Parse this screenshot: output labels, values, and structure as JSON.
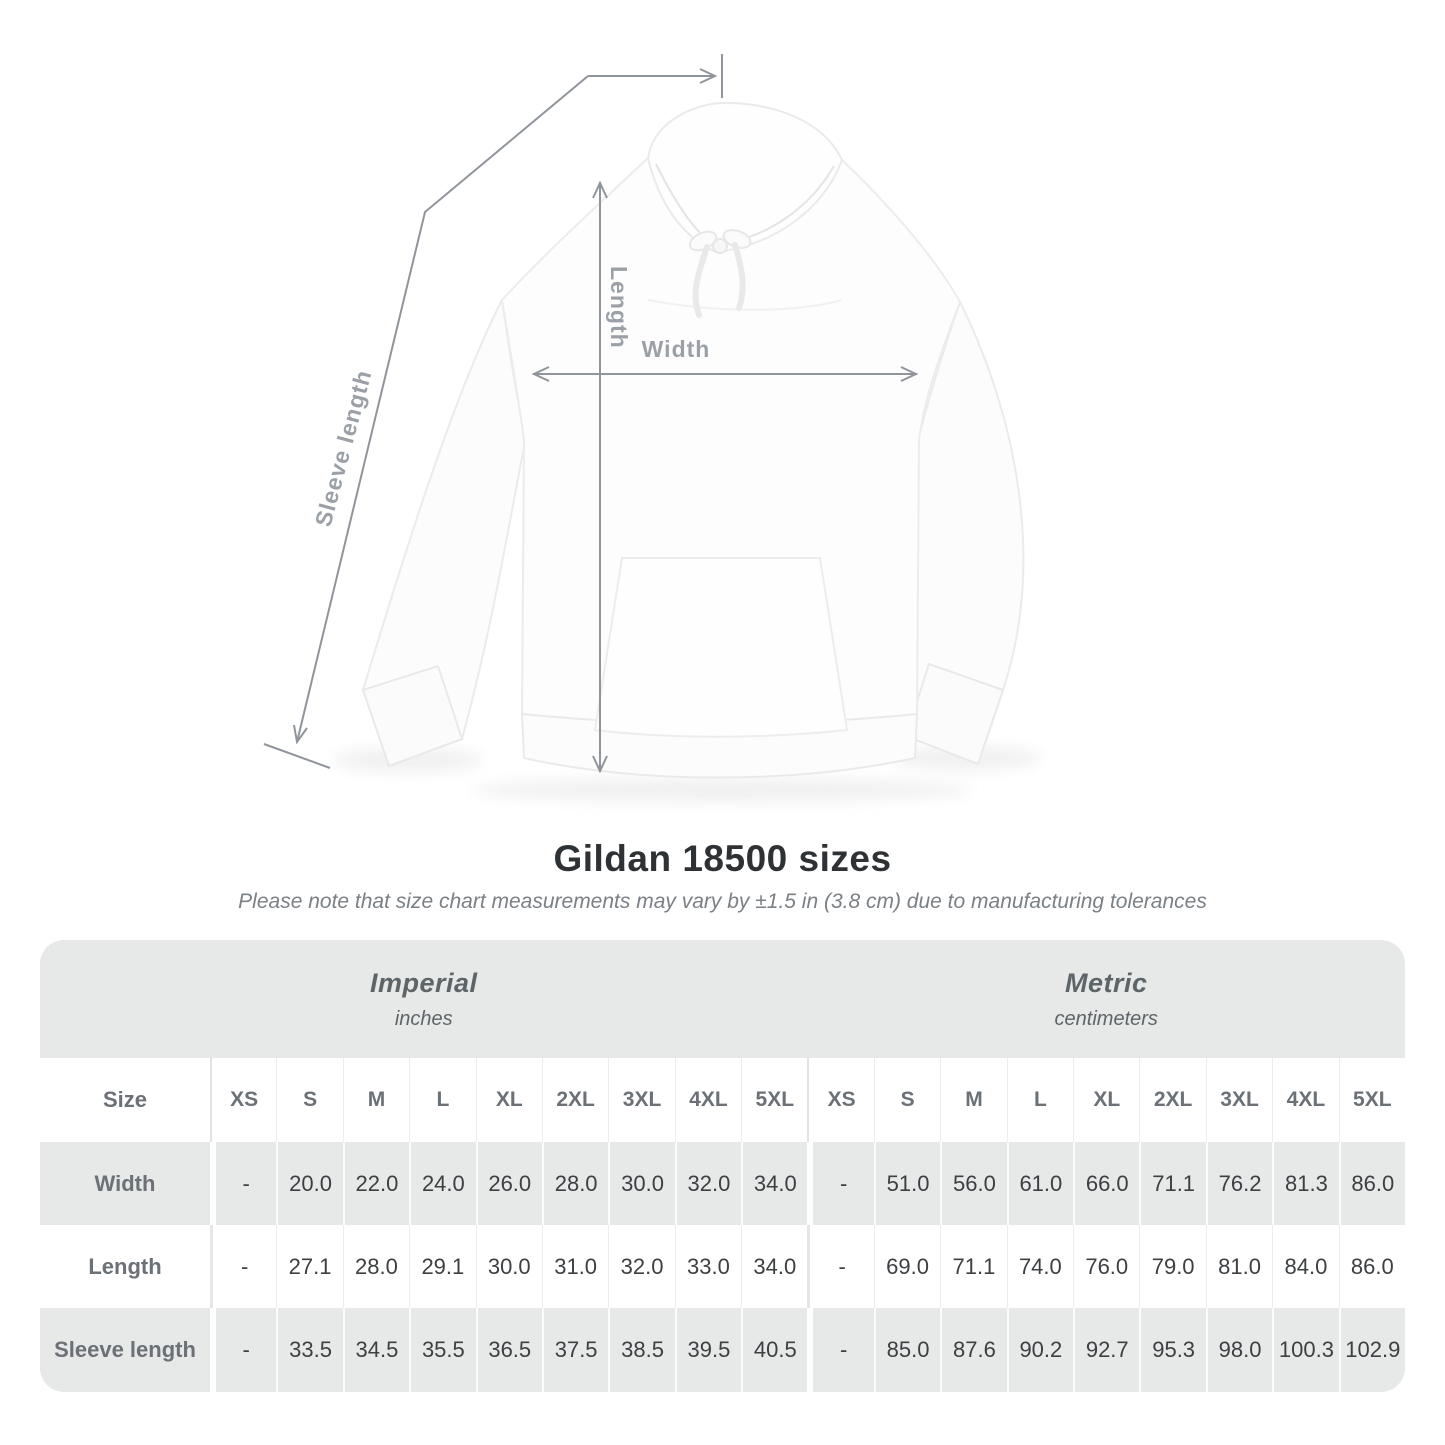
{
  "diagram": {
    "sleeve_label": "Sleeve length",
    "length_label": "Length",
    "width_label": "Width"
  },
  "heading": {
    "title": "Gildan 18500 sizes",
    "subtitle": "Please note that size chart measurements may vary by ±1.5 in (3.8 cm) due to manufacturing tolerances"
  },
  "table": {
    "sections": [
      {
        "name": "Imperial",
        "unit": "inches"
      },
      {
        "name": "Metric",
        "unit": "centimeters"
      }
    ],
    "size_header": "Size",
    "sizes": [
      "XS",
      "S",
      "M",
      "L",
      "XL",
      "2XL",
      "3XL",
      "4XL",
      "5XL"
    ],
    "rows": [
      {
        "label": "Width",
        "imperial": [
          "-",
          "20.0",
          "22.0",
          "24.0",
          "26.0",
          "28.0",
          "30.0",
          "32.0",
          "34.0"
        ],
        "metric": [
          "-",
          "51.0",
          "56.0",
          "61.0",
          "66.0",
          "71.1",
          "76.2",
          "81.3",
          "86.0"
        ]
      },
      {
        "label": "Length",
        "imperial": [
          "-",
          "27.1",
          "28.0",
          "29.1",
          "30.0",
          "31.0",
          "32.0",
          "33.0",
          "34.0"
        ],
        "metric": [
          "-",
          "69.0",
          "71.1",
          "74.0",
          "76.0",
          "79.0",
          "81.0",
          "84.0",
          "86.0"
        ]
      },
      {
        "label": "Sleeve length",
        "imperial": [
          "-",
          "33.5",
          "34.5",
          "35.5",
          "36.5",
          "37.5",
          "38.5",
          "39.5",
          "40.5"
        ],
        "metric": [
          "-",
          "85.0",
          "87.6",
          "90.2",
          "92.7",
          "95.3",
          "98.0",
          "100.3",
          "102.9"
        ]
      }
    ]
  },
  "colors": {
    "row_gray": "#e7e8e8",
    "arrow_gray": "#8f959b",
    "label_gray": "#6b7177",
    "value_dark": "#3d4043"
  }
}
